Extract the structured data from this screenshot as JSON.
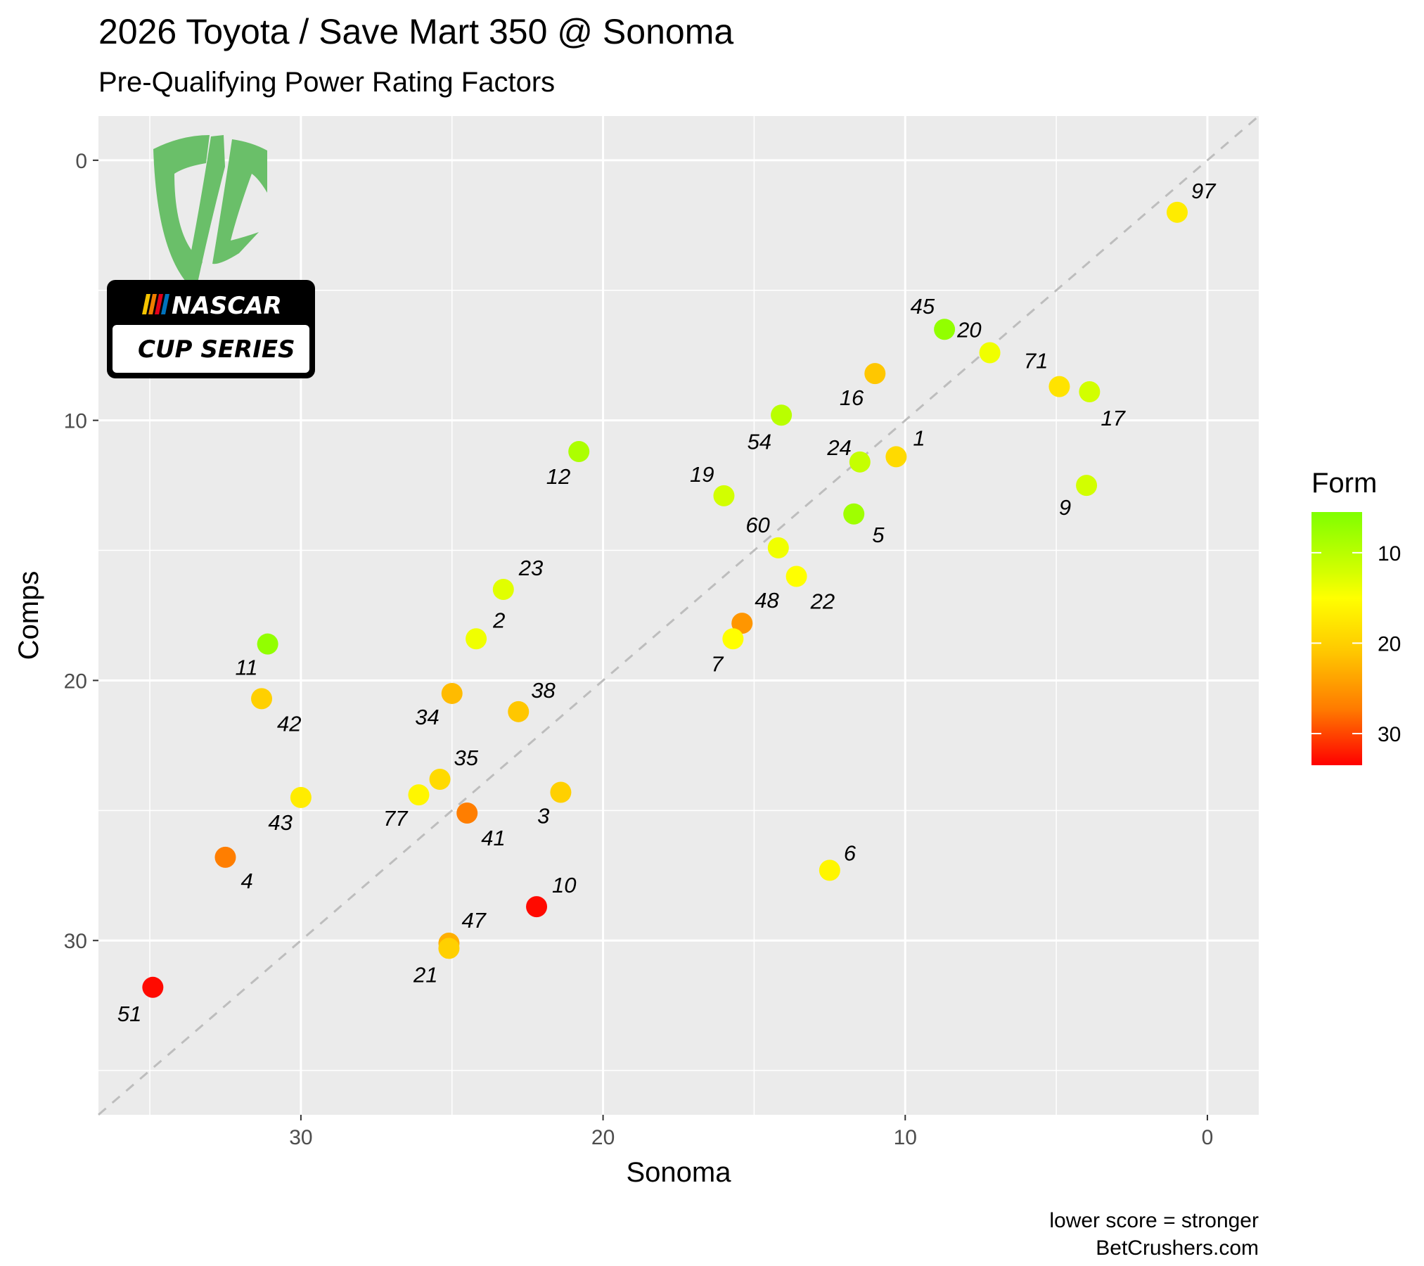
{
  "title": "2026 Toyota / Save Mart 350 @ Sonoma",
  "subtitle": "Pre-Qualifying Power Rating Factors",
  "caption_line1": "lower score = stronger",
  "caption_line2": "BetCrushers.com",
  "logo": {
    "badge_top": "NASCAR",
    "badge_bottom": "CUP SERIES",
    "mark_color": "#6abf69"
  },
  "chart_data": {
    "type": "scatter",
    "xlabel": "Sonoma",
    "ylabel": "Comps",
    "xlim": [
      36.7,
      -1.7
    ],
    "ylim": [
      36.7,
      -1.7
    ],
    "x_reversed": true,
    "y_reversed": true,
    "x_ticks": [
      30,
      20,
      10,
      0
    ],
    "y_ticks": [
      0,
      10,
      20,
      30
    ],
    "reference_line": "y = x",
    "color_legend": {
      "title": "Form",
      "ticks": [
        10,
        20,
        30
      ],
      "min": 5.5,
      "max": 33.5,
      "low_color": "#7fff00",
      "mid_color": "#ffff00",
      "high_color": "#ff0000"
    },
    "points": [
      {
        "label": "97",
        "x": 1.0,
        "y": 2.0,
        "form": 17
      },
      {
        "label": "45",
        "x": 8.7,
        "y": 6.5,
        "form": 7
      },
      {
        "label": "20",
        "x": 7.2,
        "y": 7.4,
        "form": 14
      },
      {
        "label": "16",
        "x": 11.0,
        "y": 8.2,
        "form": 21
      },
      {
        "label": "71",
        "x": 4.9,
        "y": 8.7,
        "form": 18
      },
      {
        "label": "17",
        "x": 3.9,
        "y": 8.9,
        "form": 12
      },
      {
        "label": "54",
        "x": 14.1,
        "y": 9.8,
        "form": 10
      },
      {
        "label": "12",
        "x": 20.8,
        "y": 11.2,
        "form": 9
      },
      {
        "label": "1",
        "x": 10.3,
        "y": 11.4,
        "form": 19
      },
      {
        "label": "24",
        "x": 11.5,
        "y": 11.6,
        "form": 11
      },
      {
        "label": "9",
        "x": 4.0,
        "y": 12.5,
        "form": 12
      },
      {
        "label": "19",
        "x": 16.0,
        "y": 12.9,
        "form": 12
      },
      {
        "label": "5",
        "x": 11.7,
        "y": 13.6,
        "form": 8
      },
      {
        "label": "60",
        "x": 14.2,
        "y": 14.9,
        "form": 14
      },
      {
        "label": "22",
        "x": 13.6,
        "y": 16.0,
        "form": 15
      },
      {
        "label": "23",
        "x": 23.3,
        "y": 16.5,
        "form": 13
      },
      {
        "label": "48",
        "x": 15.4,
        "y": 17.8,
        "form": 25
      },
      {
        "label": "2",
        "x": 24.2,
        "y": 18.4,
        "form": 14
      },
      {
        "label": "7",
        "x": 15.7,
        "y": 18.4,
        "form": 15
      },
      {
        "label": "11",
        "x": 31.1,
        "y": 18.6,
        "form": 7
      },
      {
        "label": "34",
        "x": 25.0,
        "y": 20.5,
        "form": 22
      },
      {
        "label": "42",
        "x": 31.3,
        "y": 20.7,
        "form": 20
      },
      {
        "label": "38",
        "x": 22.8,
        "y": 21.2,
        "form": 21
      },
      {
        "label": "35",
        "x": 25.4,
        "y": 23.8,
        "form": 19
      },
      {
        "label": "3",
        "x": 21.4,
        "y": 24.3,
        "form": 20
      },
      {
        "label": "77",
        "x": 26.1,
        "y": 24.4,
        "form": 16
      },
      {
        "label": "43",
        "x": 30.0,
        "y": 24.5,
        "form": 17
      },
      {
        "label": "41",
        "x": 24.5,
        "y": 25.1,
        "form": 27
      },
      {
        "label": "4",
        "x": 32.5,
        "y": 26.8,
        "form": 27
      },
      {
        "label": "6",
        "x": 12.5,
        "y": 27.3,
        "form": 16
      },
      {
        "label": "10",
        "x": 22.2,
        "y": 28.7,
        "form": 33
      },
      {
        "label": "47",
        "x": 25.1,
        "y": 30.1,
        "form": 23
      },
      {
        "label": "21",
        "x": 25.1,
        "y": 30.3,
        "form": 20
      },
      {
        "label": "51",
        "x": 34.9,
        "y": 31.8,
        "form": 33
      }
    ]
  }
}
